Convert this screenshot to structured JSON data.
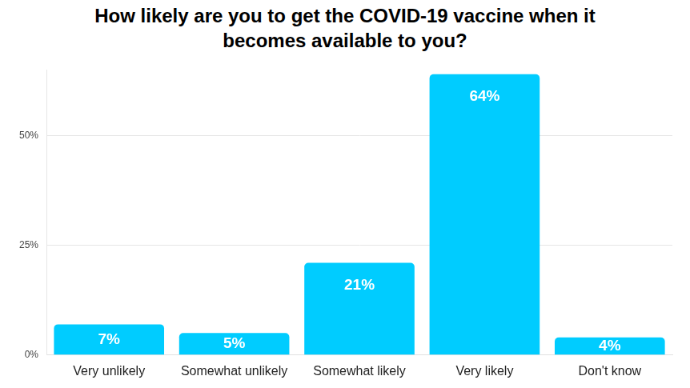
{
  "chart_data": {
    "type": "bar",
    "title": "How likely are you to get the COVID-19 vaccine when it becomes available to you?",
    "categories": [
      "Very unlikely",
      "Somewhat unlikely",
      "Somewhat likely",
      "Very likely",
      "Don't know"
    ],
    "values": [
      7,
      5,
      21,
      64,
      4
    ],
    "value_labels": [
      "7%",
      "5%",
      "21%",
      "64%",
      "4%"
    ],
    "data_labels": true,
    "color": "#00ccff",
    "ylim": [
      0,
      65
    ],
    "yticks": [
      {
        "value": 0,
        "label": "0%"
      },
      {
        "value": 25,
        "label": "25%"
      },
      {
        "value": 50,
        "label": "50%"
      }
    ],
    "grid": true
  }
}
